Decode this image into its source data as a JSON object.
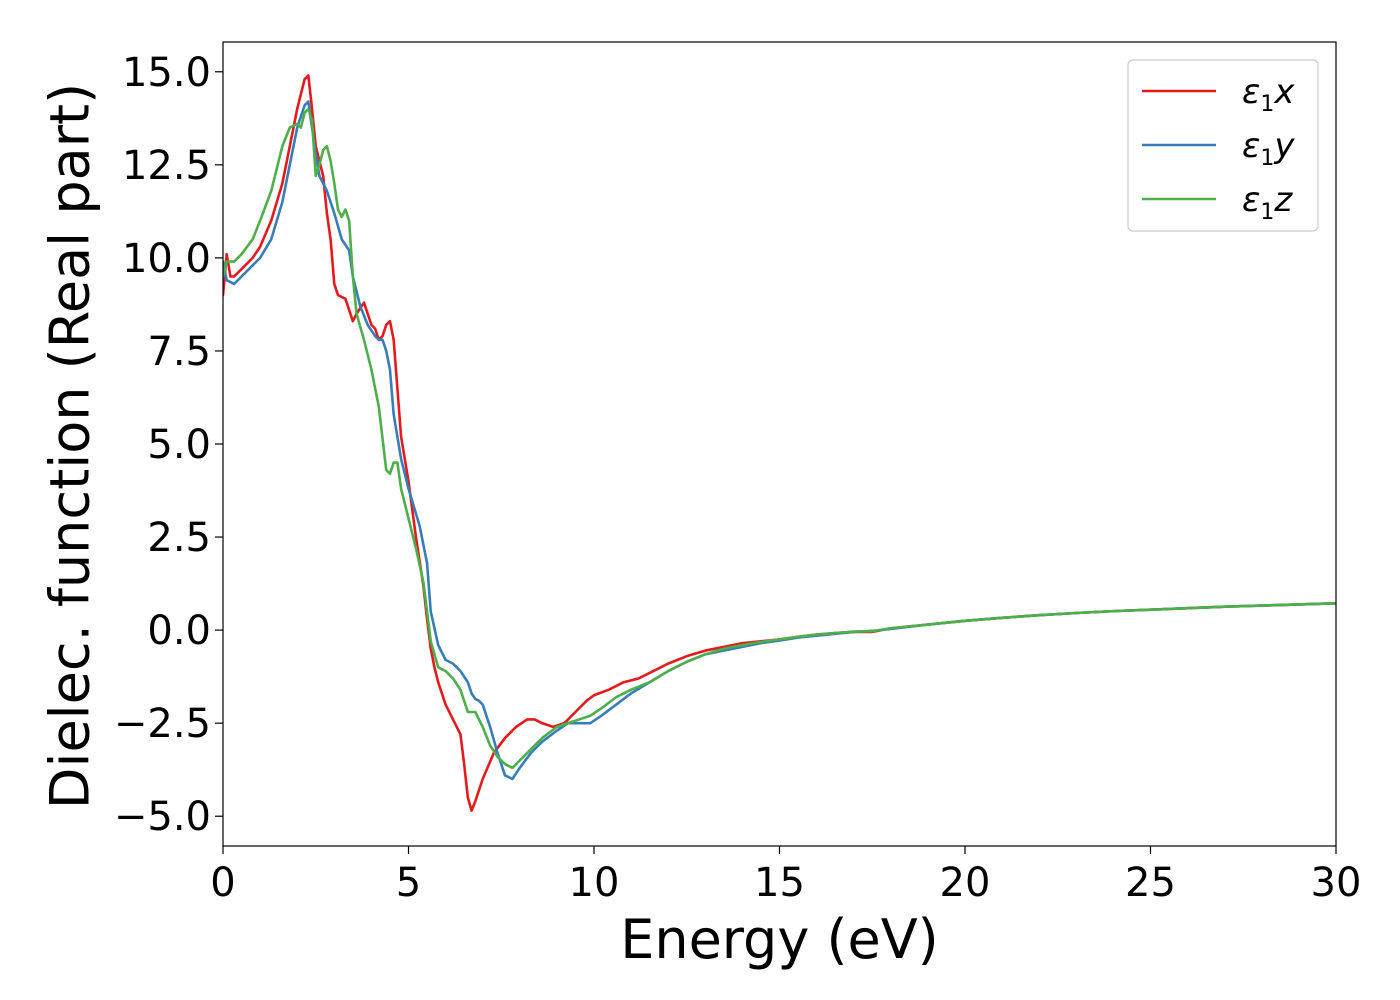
{
  "chart_data": {
    "type": "line",
    "title": "",
    "xlabel": "Energy (eV)",
    "ylabel": "Dielec. function (Real part)",
    "xlim": [
      0,
      30
    ],
    "ylim": [
      -5.8,
      15.8
    ],
    "xticks": [
      0,
      5,
      10,
      15,
      20,
      25,
      30
    ],
    "xtick_labels": [
      "0",
      "5",
      "10",
      "15",
      "20",
      "25",
      "30"
    ],
    "yticks": [
      -5.0,
      -2.5,
      0.0,
      2.5,
      5.0,
      7.5,
      10.0,
      12.5,
      15.0
    ],
    "ytick_labels": [
      "−5.0",
      "−2.5",
      "0.0",
      "2.5",
      "5.0",
      "7.5",
      "10.0",
      "12.5",
      "15.0"
    ],
    "grid": false,
    "legend_position": "top-right",
    "series": [
      {
        "name": "ε₁x",
        "legend_base": "ε",
        "legend_sub": "1",
        "legend_var": "x",
        "color": "#e41a1c",
        "x": [
          0,
          0.1,
          0.2,
          0.3,
          0.5,
          0.8,
          1.0,
          1.3,
          1.6,
          1.8,
          2.0,
          2.2,
          2.3,
          2.4,
          2.5,
          2.6,
          2.7,
          2.8,
          2.9,
          3.0,
          3.1,
          3.3,
          3.5,
          3.6,
          3.8,
          3.9,
          4.0,
          4.1,
          4.2,
          4.3,
          4.4,
          4.5,
          4.6,
          4.7,
          4.8,
          5.0,
          5.2,
          5.4,
          5.5,
          5.6,
          5.7,
          5.8,
          6.0,
          6.2,
          6.4,
          6.5,
          6.6,
          6.7,
          6.8,
          7.0,
          7.3,
          7.6,
          7.9,
          8.2,
          8.4,
          8.6,
          8.9,
          9.2,
          9.5,
          9.8,
          10.0,
          10.4,
          10.8,
          11.2,
          11.6,
          12.0,
          12.5,
          13.0,
          13.5,
          14.0,
          14.5,
          15.0,
          15.5,
          16.0,
          16.5,
          17.0,
          17.5,
          18.0,
          19.0,
          20.0,
          21.0,
          22.0,
          23.0,
          24.0,
          25.0,
          26.0,
          27.0,
          28.0,
          29.0,
          30.0
        ],
        "y": [
          9.0,
          10.1,
          9.5,
          9.5,
          9.7,
          10.0,
          10.3,
          11.0,
          12.0,
          13.0,
          14.0,
          14.8,
          14.9,
          14.0,
          13.0,
          12.6,
          12.2,
          11.2,
          10.5,
          9.3,
          9.0,
          8.9,
          8.3,
          8.5,
          8.8,
          8.5,
          8.2,
          8.1,
          7.8,
          7.9,
          8.2,
          8.3,
          7.8,
          6.5,
          5.2,
          4.0,
          2.5,
          1.2,
          0.3,
          -0.5,
          -1.0,
          -1.4,
          -2.0,
          -2.4,
          -2.8,
          -3.6,
          -4.5,
          -4.85,
          -4.6,
          -4.0,
          -3.3,
          -2.9,
          -2.6,
          -2.4,
          -2.4,
          -2.5,
          -2.6,
          -2.5,
          -2.2,
          -1.9,
          -1.75,
          -1.6,
          -1.4,
          -1.3,
          -1.1,
          -0.9,
          -0.7,
          -0.55,
          -0.45,
          -0.35,
          -0.3,
          -0.25,
          -0.18,
          -0.12,
          -0.08,
          -0.05,
          -0.05,
          0.05,
          0.15,
          0.25,
          0.33,
          0.4,
          0.46,
          0.51,
          0.55,
          0.59,
          0.63,
          0.66,
          0.69,
          0.72
        ]
      },
      {
        "name": "ε₁y",
        "legend_base": "ε",
        "legend_sub": "1",
        "legend_var": "y",
        "color": "#377eb8",
        "x": [
          0,
          0.1,
          0.3,
          0.5,
          0.8,
          1.0,
          1.3,
          1.6,
          1.8,
          2.0,
          2.2,
          2.3,
          2.4,
          2.5,
          2.6,
          2.8,
          3.0,
          3.2,
          3.4,
          3.5,
          3.7,
          3.9,
          4.1,
          4.2,
          4.3,
          4.4,
          4.5,
          4.6,
          4.8,
          5.0,
          5.3,
          5.5,
          5.6,
          5.8,
          6.0,
          6.2,
          6.4,
          6.6,
          6.7,
          6.8,
          6.9,
          7.0,
          7.2,
          7.4,
          7.6,
          7.8,
          8.0,
          8.3,
          8.6,
          9.0,
          9.3,
          9.6,
          9.9,
          10.2,
          10.6,
          11.0,
          11.5,
          12.0,
          12.5,
          13.0,
          13.5,
          14.0,
          14.5,
          15.0,
          15.5,
          16.0,
          16.5,
          17.0,
          17.5,
          18.0,
          19.0,
          20.0,
          21.0,
          22.0,
          23.0,
          24.0,
          25.0,
          26.0,
          27.0,
          28.0,
          29.0,
          30.0
        ],
        "y": [
          9.9,
          9.4,
          9.3,
          9.5,
          9.8,
          10.0,
          10.5,
          11.5,
          12.5,
          13.5,
          14.1,
          14.2,
          13.5,
          12.8,
          12.2,
          11.8,
          11.2,
          10.5,
          10.2,
          9.5,
          8.7,
          8.2,
          7.9,
          7.8,
          7.8,
          7.5,
          7.0,
          5.8,
          4.6,
          3.8,
          2.8,
          1.8,
          0.5,
          -0.4,
          -0.8,
          -0.9,
          -1.1,
          -1.4,
          -1.7,
          -1.85,
          -1.9,
          -2.0,
          -2.6,
          -3.3,
          -3.9,
          -4.0,
          -3.7,
          -3.3,
          -3.0,
          -2.7,
          -2.5,
          -2.5,
          -2.5,
          -2.3,
          -2.0,
          -1.7,
          -1.4,
          -1.1,
          -0.85,
          -0.65,
          -0.55,
          -0.45,
          -0.35,
          -0.28,
          -0.2,
          -0.15,
          -0.1,
          -0.05,
          -0.02,
          0.03,
          0.15,
          0.25,
          0.33,
          0.4,
          0.46,
          0.51,
          0.55,
          0.59,
          0.63,
          0.66,
          0.69,
          0.72
        ]
      },
      {
        "name": "ε₁z",
        "legend_base": "ε",
        "legend_sub": "1",
        "legend_var": "z",
        "color": "#4daf4a",
        "x": [
          0,
          0.1,
          0.3,
          0.5,
          0.8,
          1.0,
          1.3,
          1.6,
          1.8,
          2.0,
          2.1,
          2.2,
          2.3,
          2.4,
          2.5,
          2.6,
          2.7,
          2.8,
          2.9,
          3.0,
          3.1,
          3.2,
          3.3,
          3.4,
          3.5,
          3.6,
          3.8,
          4.0,
          4.2,
          4.4,
          4.5,
          4.6,
          4.7,
          4.8,
          5.0,
          5.2,
          5.4,
          5.6,
          5.8,
          6.0,
          6.2,
          6.4,
          6.6,
          6.8,
          7.0,
          7.2,
          7.4,
          7.6,
          7.8,
          8.0,
          8.3,
          8.6,
          9.0,
          9.3,
          9.6,
          9.9,
          10.2,
          10.6,
          11.0,
          11.5,
          12.0,
          12.5,
          13.0,
          13.5,
          14.0,
          14.5,
          15.0,
          15.5,
          16.0,
          16.5,
          17.0,
          17.5,
          18.0,
          19.0,
          20.0,
          21.0,
          22.0,
          23.0,
          24.0,
          25.0,
          26.0,
          27.0,
          28.0,
          29.0,
          30.0
        ],
        "y": [
          9.5,
          9.9,
          9.9,
          10.1,
          10.5,
          11.0,
          11.8,
          13.0,
          13.5,
          13.6,
          13.5,
          13.9,
          14.0,
          13.7,
          12.2,
          12.5,
          12.9,
          13.0,
          12.6,
          12.0,
          11.3,
          11.1,
          11.3,
          11.0,
          9.5,
          8.5,
          7.8,
          7.0,
          6.0,
          4.3,
          4.2,
          4.5,
          4.5,
          3.8,
          3.0,
          2.2,
          1.3,
          -0.3,
          -1.0,
          -1.1,
          -1.3,
          -1.6,
          -2.2,
          -2.2,
          -2.6,
          -3.1,
          -3.4,
          -3.6,
          -3.7,
          -3.5,
          -3.2,
          -2.9,
          -2.6,
          -2.5,
          -2.4,
          -2.3,
          -2.1,
          -1.8,
          -1.6,
          -1.4,
          -1.1,
          -0.85,
          -0.65,
          -0.5,
          -0.4,
          -0.32,
          -0.25,
          -0.18,
          -0.12,
          -0.08,
          -0.04,
          -0.03,
          0.05,
          0.15,
          0.25,
          0.33,
          0.4,
          0.46,
          0.51,
          0.55,
          0.59,
          0.63,
          0.66,
          0.69,
          0.72
        ]
      }
    ]
  }
}
